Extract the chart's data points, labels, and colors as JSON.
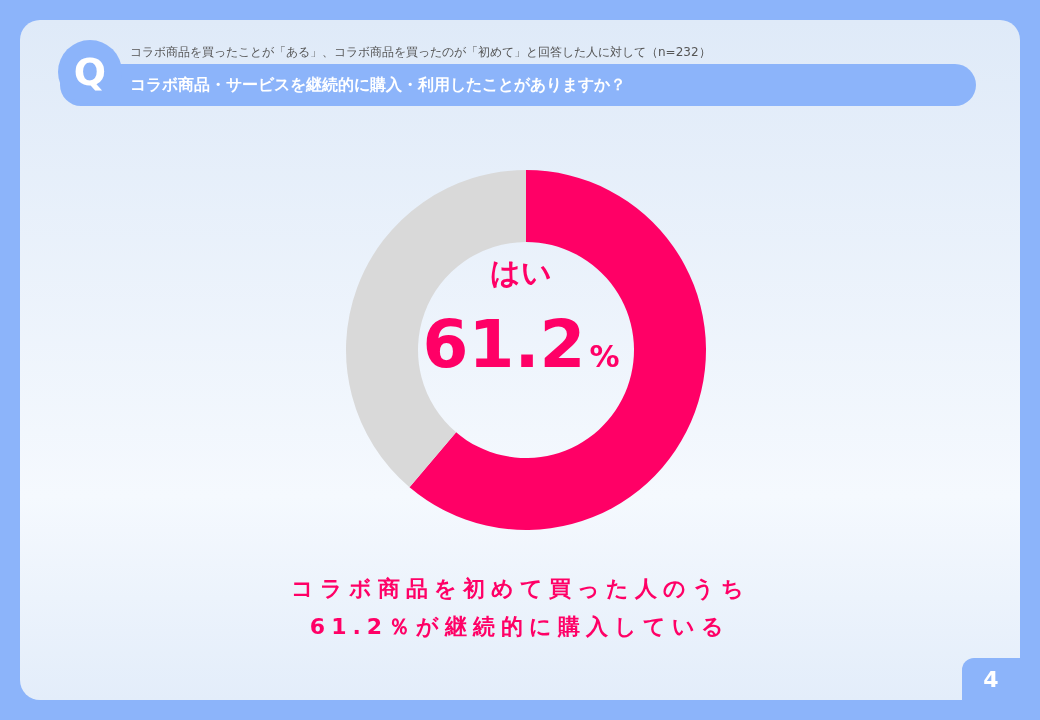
{
  "chart_data": {
    "type": "donut",
    "title": "コラボ商品・サービスを継続的に購入・利用したことがありますか？",
    "subtitle": "コラボ商品を買ったことが「ある」、コラボ商品を買ったのが「初めて」と回答した人に対して（n=232）",
    "categories": [
      "はい",
      null
    ],
    "values": [
      61.2,
      38.8
    ],
    "colors": [
      "#ff0066",
      "#d9d9d9"
    ],
    "value_labels": [
      "61.2%",
      null
    ],
    "annotations": [
      "Q",
      "コラボ商品を初めて買った人のうち",
      "61.2％が継続的に購入している",
      "4"
    ]
  }
}
